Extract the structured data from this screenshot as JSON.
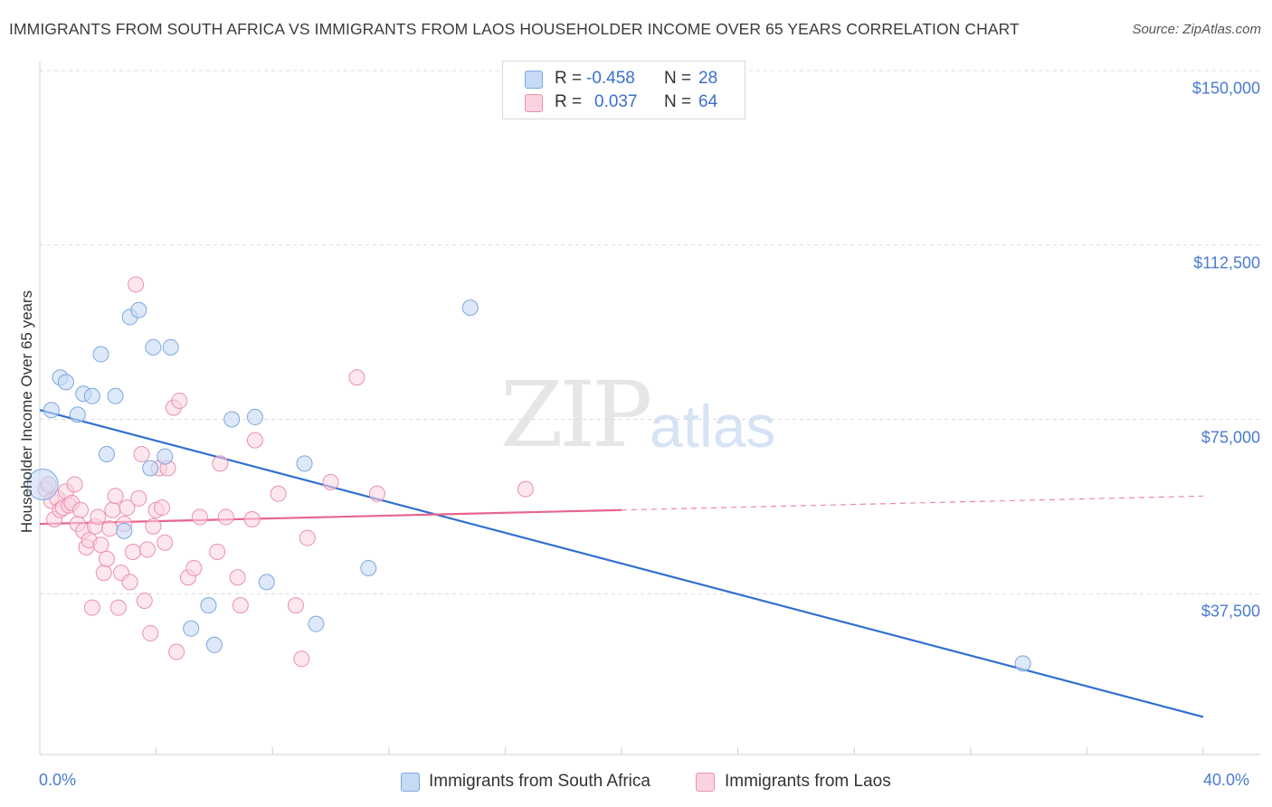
{
  "header": {
    "title": "IMMIGRANTS FROM SOUTH AFRICA VS IMMIGRANTS FROM LAOS HOUSEHOLDER INCOME OVER 65 YEARS CORRELATION CHART",
    "source": "Source: ZipAtlas.com"
  },
  "watermark": {
    "part1": "ZIP",
    "part2": "atlas"
  },
  "legend": {
    "series1": {
      "r_label": "R =",
      "r_value": "-0.458",
      "n_label": "N =",
      "n_value": "28"
    },
    "series2": {
      "r_label": "R =",
      "r_value": "0.037",
      "n_label": "N =",
      "n_value": "64"
    }
  },
  "colors": {
    "south_africa_fill": "#c7daf5",
    "south_africa_stroke": "#7ea6e0",
    "south_africa_line": "#2f6fd0",
    "laos_fill": "#fbd3e0",
    "laos_stroke": "#eb8fb0",
    "laos_line": "#e86591",
    "tick_label": "#4a7bd0"
  },
  "chart_data": {
    "type": "scatter",
    "title": "IMMIGRANTS FROM SOUTH AFRICA VS IMMIGRANTS FROM LAOS HOUSEHOLDER INCOME OVER 65 YEARS CORRELATION CHART",
    "xlabel": "",
    "ylabel": "Householder Income Over 65 years",
    "xlim": [
      0,
      40
    ],
    "ylim": [
      0,
      155000
    ],
    "x_tick_labels": [
      "0.0%",
      "40.0%"
    ],
    "y_ticks": [
      37500,
      75000,
      112500,
      150000
    ],
    "y_tick_labels": [
      "$37,500",
      "$75,000",
      "$112,500",
      "$150,000"
    ],
    "grid": "horizontal dashed",
    "legend_position": "top-center",
    "series": [
      {
        "name": "Immigrants from South Africa",
        "r": -0.458,
        "n": 28,
        "points": [
          [
            0.1,
            61000
          ],
          [
            0.4,
            77000
          ],
          [
            0.7,
            84000
          ],
          [
            0.9,
            83000
          ],
          [
            1.3,
            76000
          ],
          [
            1.5,
            80500
          ],
          [
            1.8,
            80000
          ],
          [
            2.1,
            89000
          ],
          [
            2.3,
            67500
          ],
          [
            2.6,
            80000
          ],
          [
            2.9,
            51000
          ],
          [
            3.1,
            97000
          ],
          [
            3.4,
            98500
          ],
          [
            3.8,
            64500
          ],
          [
            3.9,
            90500
          ],
          [
            4.3,
            67000
          ],
          [
            4.5,
            90500
          ],
          [
            5.2,
            30000
          ],
          [
            5.8,
            35000
          ],
          [
            6.0,
            26500
          ],
          [
            6.6,
            75000
          ],
          [
            7.4,
            75500
          ],
          [
            7.8,
            40000
          ],
          [
            9.1,
            65500
          ],
          [
            9.5,
            31000
          ],
          [
            11.3,
            43000
          ],
          [
            14.8,
            99000
          ],
          [
            33.8,
            22500
          ]
        ],
        "trend": {
          "x": [
            0,
            40
          ],
          "y": [
            77000,
            11000
          ]
        }
      },
      {
        "name": "Immigrants from Laos",
        "r": 0.037,
        "n": 64,
        "points": [
          [
            0.2,
            60000
          ],
          [
            0.3,
            61000
          ],
          [
            0.4,
            57500
          ],
          [
            0.5,
            53500
          ],
          [
            0.6,
            58000
          ],
          [
            0.7,
            55500
          ],
          [
            0.8,
            56000
          ],
          [
            0.9,
            59500
          ],
          [
            1.0,
            56500
          ],
          [
            1.1,
            57000
          ],
          [
            1.2,
            61000
          ],
          [
            1.3,
            52500
          ],
          [
            1.4,
            55500
          ],
          [
            1.5,
            51000
          ],
          [
            1.6,
            47500
          ],
          [
            1.7,
            49000
          ],
          [
            1.8,
            34500
          ],
          [
            1.9,
            52000
          ],
          [
            2.0,
            54000
          ],
          [
            2.1,
            48000
          ],
          [
            2.2,
            42000
          ],
          [
            2.3,
            45000
          ],
          [
            2.4,
            51500
          ],
          [
            2.5,
            55500
          ],
          [
            2.6,
            58500
          ],
          [
            2.7,
            34500
          ],
          [
            2.8,
            42000
          ],
          [
            2.9,
            52500
          ],
          [
            3.0,
            56000
          ],
          [
            3.1,
            40000
          ],
          [
            3.2,
            46500
          ],
          [
            3.3,
            104000
          ],
          [
            3.4,
            58000
          ],
          [
            3.5,
            67500
          ],
          [
            3.6,
            36000
          ],
          [
            3.7,
            47000
          ],
          [
            3.8,
            29000
          ],
          [
            3.9,
            52000
          ],
          [
            4.0,
            55500
          ],
          [
            4.1,
            64500
          ],
          [
            4.2,
            56000
          ],
          [
            4.3,
            48500
          ],
          [
            4.4,
            64500
          ],
          [
            4.6,
            77500
          ],
          [
            4.7,
            25000
          ],
          [
            4.8,
            79000
          ],
          [
            5.1,
            41000
          ],
          [
            5.3,
            43000
          ],
          [
            5.5,
            54000
          ],
          [
            6.1,
            46500
          ],
          [
            6.2,
            65500
          ],
          [
            6.4,
            54000
          ],
          [
            6.8,
            41000
          ],
          [
            6.9,
            35000
          ],
          [
            7.3,
            53500
          ],
          [
            7.4,
            70500
          ],
          [
            8.2,
            59000
          ],
          [
            8.8,
            35000
          ],
          [
            9.0,
            23500
          ],
          [
            9.2,
            49500
          ],
          [
            10.0,
            61500
          ],
          [
            10.9,
            84000
          ],
          [
            11.6,
            59000
          ],
          [
            16.7,
            60000
          ]
        ],
        "trend_solid": {
          "x": [
            0,
            20
          ],
          "y": [
            52500,
            55500
          ]
        },
        "trend_dashed": {
          "x": [
            20,
            40
          ],
          "y": [
            55500,
            58500
          ]
        }
      }
    ]
  }
}
